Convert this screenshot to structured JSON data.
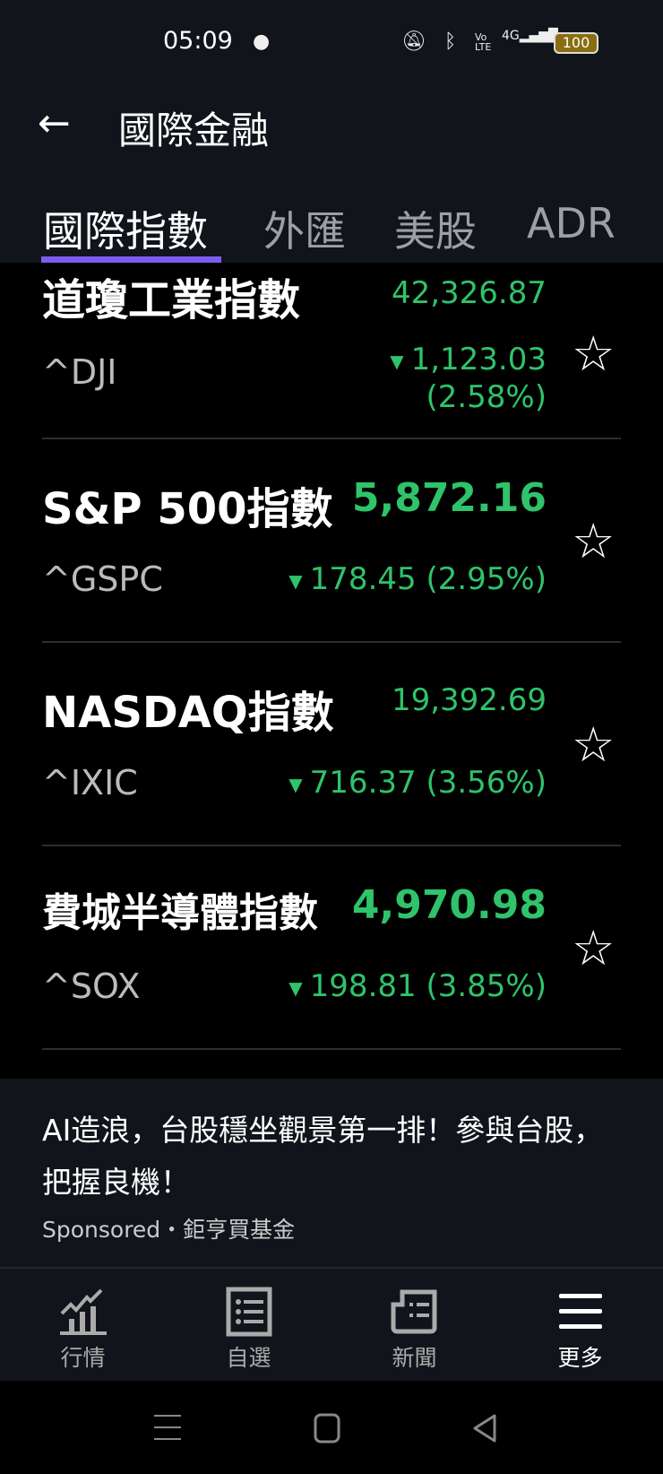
{
  "status_bar": {
    "time": "05:09",
    "battery": "100",
    "icons": [
      "messenger-icon",
      "mute-icon",
      "bluetooth-icon",
      "volte-icon",
      "signal-4g-icon",
      "battery-icon"
    ]
  },
  "header": {
    "title": "國際金融",
    "back_icon": "arrow-left-icon"
  },
  "tabs": [
    {
      "label": "國際指數",
      "active": true
    },
    {
      "label": "外匯"
    },
    {
      "label": "美股"
    },
    {
      "label": "ADR"
    }
  ],
  "colors": {
    "accent": "#7b5cf0",
    "up_down_green": "#2fc36b",
    "background": "#000000",
    "header": "#11141a"
  },
  "indices": [
    {
      "name": "道瓊工業指數",
      "symbol": "^DJI",
      "price": "42,326.87",
      "change": "1,123.03",
      "percent": "(2.58%)"
    },
    {
      "name": "S&P 500指數",
      "symbol": "^GSPC",
      "price": "5,872.16",
      "change": "178.45 (2.95%)"
    },
    {
      "name": "NASDAQ指數",
      "symbol": "^IXIC",
      "price": "19,392.69",
      "change": "716.37 (3.56%)"
    },
    {
      "name": "費城半導體指數",
      "symbol": "^SOX",
      "price": "4,970.98",
      "change": "198.81 (3.85%)"
    }
  ],
  "ad": {
    "text": "AI造浪，台股穩坐觀景第一排！參與台股，把握良機！",
    "sponsor": "Sponsored・鉅亨買基金"
  },
  "bottom_nav": [
    {
      "label": "行情",
      "icon": "chart-icon"
    },
    {
      "label": "自選",
      "icon": "list-icon"
    },
    {
      "label": "新聞",
      "icon": "news-icon"
    },
    {
      "label": "更多",
      "icon": "menu-icon",
      "active": true
    }
  ]
}
